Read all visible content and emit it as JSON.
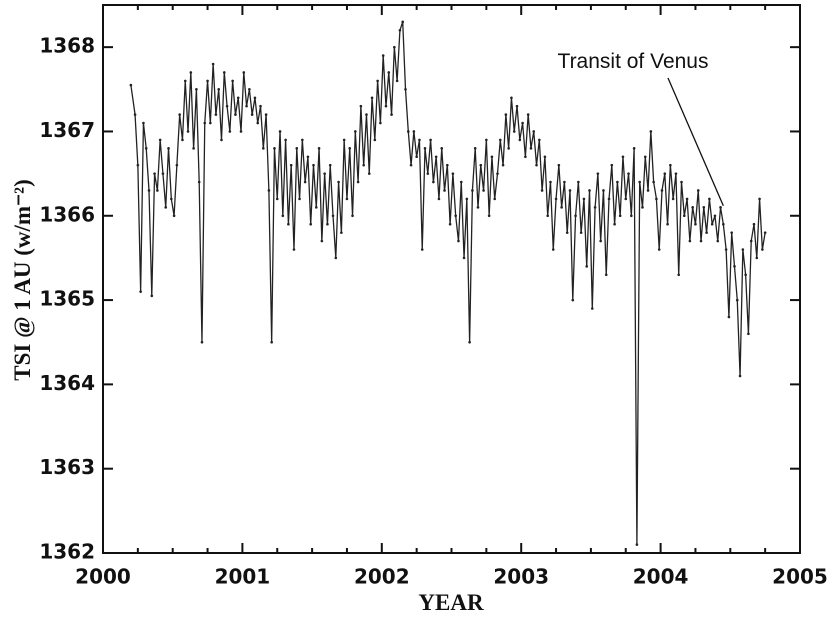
{
  "chart_data": {
    "type": "line",
    "x_label": "YEAR",
    "y_label": "TSI @ 1 AU (w/m⁻²)",
    "color": "#222222",
    "xlim": [
      2000,
      2005
    ],
    "xticks": [
      2000,
      2001,
      2002,
      2003,
      2004,
      2005
    ],
    "xminorticks": [
      2000.25,
      2000.5,
      2000.75,
      2001.25,
      2001.5,
      2001.75,
      2002.25,
      2002.5,
      2002.75,
      2003.25,
      2003.5,
      2003.75,
      2004.25,
      2004.5,
      2004.75
    ],
    "ylim": [
      1362,
      1368.5
    ],
    "yticks": [
      1362,
      1363,
      1364,
      1365,
      1366,
      1367,
      1368
    ],
    "annotations": [
      {
        "text": "Transit of Venus",
        "x": 2004.45,
        "y": 1366.0
      }
    ],
    "x": [
      2000.2,
      2000.23,
      2000.25,
      2000.27,
      2000.29,
      2000.31,
      2000.33,
      2000.35,
      2000.37,
      2000.39,
      2000.41,
      2000.43,
      2000.45,
      2000.47,
      2000.49,
      2000.51,
      2000.53,
      2000.55,
      2000.57,
      2000.59,
      2000.61,
      2000.63,
      2000.65,
      2000.67,
      2000.69,
      2000.71,
      2000.73,
      2000.75,
      2000.77,
      2000.79,
      2000.81,
      2000.83,
      2000.85,
      2000.87,
      2000.89,
      2000.91,
      2000.93,
      2000.95,
      2000.97,
      2000.99,
      2001.01,
      2001.03,
      2001.05,
      2001.07,
      2001.09,
      2001.11,
      2001.13,
      2001.15,
      2001.17,
      2001.19,
      2001.21,
      2001.23,
      2001.25,
      2001.27,
      2001.29,
      2001.31,
      2001.33,
      2001.35,
      2001.37,
      2001.39,
      2001.41,
      2001.43,
      2001.45,
      2001.47,
      2001.49,
      2001.51,
      2001.53,
      2001.55,
      2001.57,
      2001.59,
      2001.61,
      2001.63,
      2001.65,
      2001.67,
      2001.69,
      2001.71,
      2001.73,
      2001.75,
      2001.77,
      2001.79,
      2001.81,
      2001.83,
      2001.85,
      2001.87,
      2001.89,
      2001.91,
      2001.93,
      2001.95,
      2001.97,
      2001.99,
      2002.01,
      2002.03,
      2002.05,
      2002.07,
      2002.09,
      2002.11,
      2002.13,
      2002.15,
      2002.17,
      2002.19,
      2002.21,
      2002.23,
      2002.25,
      2002.27,
      2002.29,
      2002.31,
      2002.33,
      2002.35,
      2002.37,
      2002.39,
      2002.41,
      2002.43,
      2002.45,
      2002.47,
      2002.49,
      2002.51,
      2002.53,
      2002.55,
      2002.57,
      2002.59,
      2002.61,
      2002.63,
      2002.65,
      2002.67,
      2002.69,
      2002.71,
      2002.73,
      2002.75,
      2002.77,
      2002.79,
      2002.81,
      2002.83,
      2002.85,
      2002.87,
      2002.89,
      2002.91,
      2002.93,
      2002.95,
      2002.97,
      2002.99,
      2003.01,
      2003.03,
      2003.05,
      2003.07,
      2003.09,
      2003.11,
      2003.13,
      2003.15,
      2003.17,
      2003.19,
      2003.21,
      2003.23,
      2003.25,
      2003.27,
      2003.29,
      2003.31,
      2003.33,
      2003.35,
      2003.37,
      2003.39,
      2003.41,
      2003.43,
      2003.45,
      2003.47,
      2003.49,
      2003.51,
      2003.53,
      2003.55,
      2003.57,
      2003.59,
      2003.61,
      2003.63,
      2003.65,
      2003.67,
      2003.69,
      2003.71,
      2003.73,
      2003.75,
      2003.77,
      2003.79,
      2003.81,
      2003.83,
      2003.85,
      2003.87,
      2003.89,
      2003.91,
      2003.93,
      2003.95,
      2003.97,
      2003.99,
      2004.01,
      2004.03,
      2004.05,
      2004.07,
      2004.09,
      2004.11,
      2004.13,
      2004.15,
      2004.17,
      2004.19,
      2004.21,
      2004.23,
      2004.25,
      2004.27,
      2004.29,
      2004.31,
      2004.33,
      2004.35,
      2004.37,
      2004.39,
      2004.41,
      2004.43,
      2004.45,
      2004.47,
      2004.49,
      2004.51,
      2004.53,
      2004.55,
      2004.57,
      2004.59,
      2004.61,
      2004.63,
      2004.65,
      2004.67,
      2004.69,
      2004.71,
      2004.73,
      2004.75
    ],
    "values": [
      1367.55,
      1367.2,
      1366.6,
      1365.1,
      1367.1,
      1366.8,
      1366.3,
      1365.05,
      1366.5,
      1366.3,
      1366.9,
      1366.5,
      1366.1,
      1366.8,
      1366.2,
      1366.0,
      1366.6,
      1367.2,
      1366.9,
      1367.6,
      1367.0,
      1367.7,
      1366.8,
      1367.5,
      1366.4,
      1364.5,
      1367.1,
      1367.6,
      1367.1,
      1367.8,
      1367.2,
      1367.5,
      1366.9,
      1367.7,
      1367.3,
      1367.0,
      1367.6,
      1367.2,
      1367.4,
      1367.0,
      1367.7,
      1367.3,
      1367.5,
      1367.2,
      1367.4,
      1367.1,
      1367.3,
      1366.8,
      1367.2,
      1366.3,
      1364.5,
      1366.8,
      1366.2,
      1367.0,
      1366.0,
      1366.9,
      1365.9,
      1366.6,
      1365.6,
      1366.8,
      1366.2,
      1366.9,
      1366.4,
      1366.7,
      1365.9,
      1366.6,
      1366.1,
      1366.8,
      1365.7,
      1366.5,
      1365.9,
      1366.6,
      1366.0,
      1365.5,
      1366.4,
      1365.8,
      1366.9,
      1366.2,
      1366.8,
      1366.0,
      1367.0,
      1366.4,
      1367.3,
      1366.6,
      1367.2,
      1366.5,
      1367.4,
      1366.9,
      1367.6,
      1367.1,
      1367.9,
      1367.3,
      1367.7,
      1367.2,
      1368.0,
      1367.6,
      1368.2,
      1368.3,
      1367.5,
      1367.0,
      1366.6,
      1367.0,
      1366.7,
      1366.9,
      1365.6,
      1366.8,
      1366.5,
      1366.9,
      1366.4,
      1366.7,
      1366.2,
      1366.8,
      1366.3,
      1366.6,
      1365.9,
      1366.5,
      1366.0,
      1365.7,
      1366.4,
      1365.5,
      1366.2,
      1364.5,
      1366.3,
      1366.8,
      1366.1,
      1366.6,
      1366.3,
      1366.9,
      1366.0,
      1366.7,
      1366.2,
      1366.5,
      1366.9,
      1366.6,
      1367.2,
      1366.8,
      1367.4,
      1367.0,
      1367.3,
      1366.9,
      1367.1,
      1366.7,
      1367.2,
      1366.8,
      1367.0,
      1366.6,
      1366.9,
      1366.3,
      1366.7,
      1366.0,
      1366.4,
      1365.6,
      1366.2,
      1366.6,
      1366.1,
      1366.4,
      1365.8,
      1366.3,
      1365.0,
      1366.0,
      1366.4,
      1365.8,
      1366.2,
      1365.4,
      1366.3,
      1364.9,
      1366.1,
      1366.5,
      1365.7,
      1366.3,
      1365.3,
      1366.2,
      1366.6,
      1365.9,
      1366.4,
      1366.0,
      1366.7,
      1366.2,
      1366.5,
      1366.0,
      1366.8,
      1362.1,
      1366.4,
      1366.1,
      1366.7,
      1366.3,
      1367.0,
      1366.4,
      1366.2,
      1365.6,
      1366.3,
      1366.5,
      1365.9,
      1366.6,
      1366.2,
      1366.5,
      1365.3,
      1366.4,
      1366.0,
      1366.2,
      1365.7,
      1366.1,
      1365.9,
      1366.3,
      1365.7,
      1366.1,
      1365.8,
      1366.2,
      1365.9,
      1366.0,
      1365.7,
      1366.1,
      1365.9,
      1365.6,
      1364.8,
      1365.8,
      1365.4,
      1365.0,
      1364.1,
      1365.6,
      1365.3,
      1364.6,
      1365.7,
      1365.9,
      1365.5,
      1366.2,
      1365.6,
      1365.8
    ]
  }
}
